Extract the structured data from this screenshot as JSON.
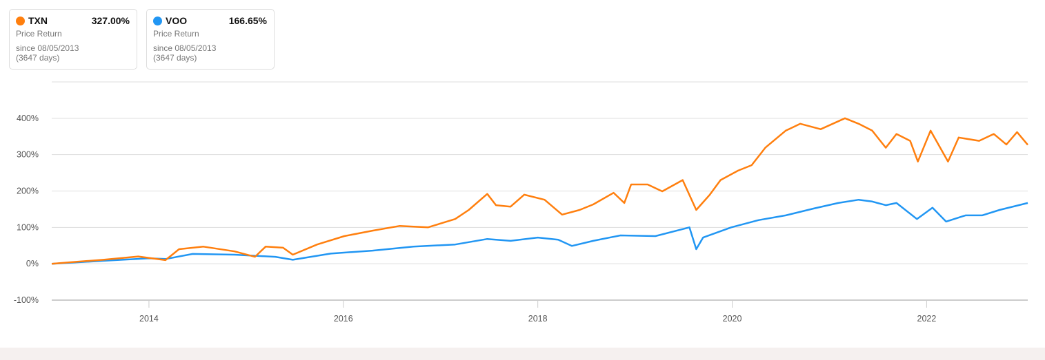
{
  "legend": [
    {
      "ticker": "TXN",
      "value": "327.00%",
      "label": "Price Return",
      "since": "since 08/05/2013",
      "days": "(3647 days)",
      "color": "#ff7f0e"
    },
    {
      "ticker": "VOO",
      "value": "166.65%",
      "label": "Price Return",
      "since": "since 08/05/2013",
      "days": "(3647 days)",
      "color": "#2196f3"
    }
  ],
  "chart_data": {
    "type": "line",
    "xlim": [
      2013.0,
      2023.04
    ],
    "ylim": [
      -100,
      500
    ],
    "grid": true,
    "yticks": [
      -100,
      0,
      100,
      200,
      300,
      400,
      500
    ],
    "ytick_labels": [
      "-100%",
      "0%",
      "100%",
      "200%",
      "300%",
      "400%",
      ""
    ],
    "xticks": [
      2014,
      2016,
      2018,
      2020,
      2022
    ],
    "xtick_labels": [
      "2014",
      "2016",
      "2018",
      "2020",
      "2022"
    ],
    "series": [
      {
        "name": "TXN",
        "color": "#ff7f0e",
        "x": [
          2013.0,
          2013.18,
          2013.53,
          2013.89,
          2014.17,
          2014.31,
          2014.56,
          2014.88,
          2015.09,
          2015.2,
          2015.38,
          2015.48,
          2015.73,
          2016.01,
          2016.3,
          2016.58,
          2016.87,
          2017.15,
          2017.29,
          2017.48,
          2017.57,
          2017.72,
          2017.86,
          2018.07,
          2018.25,
          2018.43,
          2018.57,
          2018.78,
          2018.89,
          2018.96,
          2019.13,
          2019.28,
          2019.49,
          2019.63,
          2019.77,
          2019.88,
          2020.06,
          2020.2,
          2020.34,
          2020.55,
          2020.7,
          2020.91,
          2021.16,
          2021.3,
          2021.44,
          2021.58,
          2021.69,
          2021.83,
          2021.91,
          2022.04,
          2022.22,
          2022.33,
          2022.54,
          2022.69,
          2022.82,
          2022.93,
          2023.04
        ],
        "y": [
          0,
          4,
          11,
          20,
          10,
          40,
          47,
          34,
          19,
          47,
          44,
          25,
          53,
          76,
          91,
          104,
          100,
          123,
          148,
          192,
          161,
          157,
          190,
          176,
          135,
          148,
          163,
          195,
          167,
          218,
          218,
          199,
          230,
          148,
          190,
          230,
          256,
          271,
          319,
          366,
          385,
          370,
          400,
          385,
          366,
          319,
          357,
          338,
          281,
          366,
          281,
          347,
          338,
          357,
          328,
          362,
          327
        ]
      },
      {
        "name": "VOO",
        "color": "#2196f3",
        "x": [
          2013.0,
          2013.53,
          2014.0,
          2014.17,
          2014.45,
          2014.88,
          2015.3,
          2015.48,
          2015.87,
          2016.3,
          2016.72,
          2017.15,
          2017.48,
          2017.72,
          2018.0,
          2018.21,
          2018.35,
          2018.57,
          2018.85,
          2019.21,
          2019.56,
          2019.63,
          2019.7,
          2019.99,
          2020.27,
          2020.55,
          2020.84,
          2021.09,
          2021.3,
          2021.44,
          2021.58,
          2021.69,
          2021.9,
          2022.06,
          2022.2,
          2022.4,
          2022.57,
          2022.75,
          2023.04
        ],
        "y": [
          0,
          8,
          15,
          13,
          27,
          25,
          19,
          11,
          28,
          36,
          47,
          53,
          68,
          63,
          72,
          66,
          49,
          63,
          78,
          76,
          100,
          40,
          72,
          100,
          120,
          133,
          152,
          167,
          176,
          171,
          161,
          167,
          123,
          154,
          116,
          133,
          133,
          148,
          167
        ]
      }
    ]
  }
}
